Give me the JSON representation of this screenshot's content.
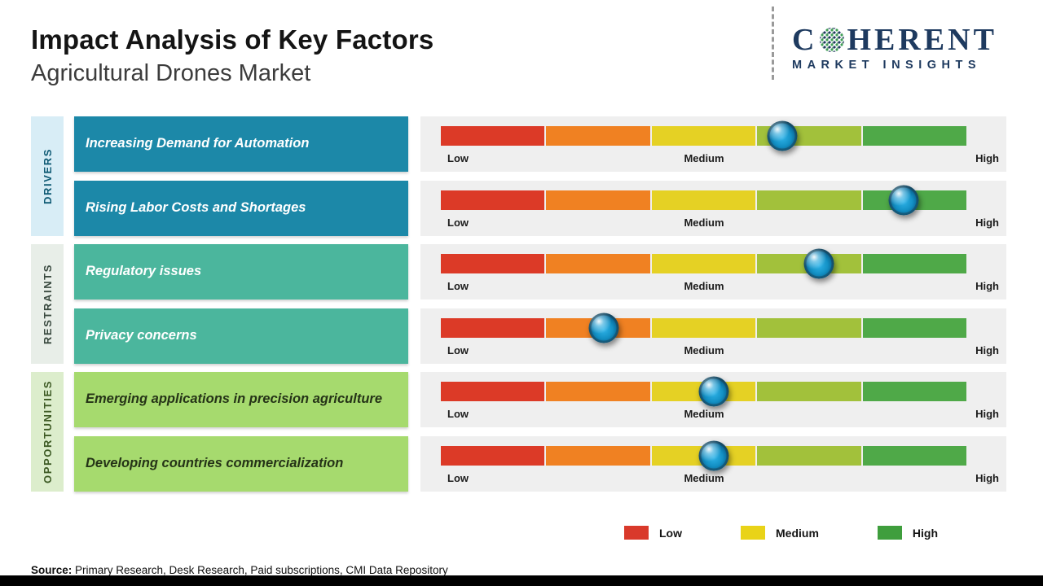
{
  "header": {
    "title": "Impact Analysis of Key Factors",
    "subtitle": "Agricultural Drones Market",
    "logo": {
      "part1": "C",
      "part2": "HERENT",
      "line2": "MARKET INSIGHTS"
    }
  },
  "chart_data": {
    "type": "heatmap",
    "description": "Impact scale chart: each factor marked on a Low-Medium-High gradient scale",
    "scale_labels": [
      "Low",
      "Medium",
      "High"
    ],
    "segment_colors": [
      "#dc3a27",
      "#f08122",
      "#e5d124",
      "#a2c13b",
      "#4fa948"
    ],
    "groups": [
      {
        "name": "DRIVERS",
        "factors": [
          {
            "label": "Increasing Demand for Automation",
            "impact_pct": 65
          },
          {
            "label": "Rising Labor Costs and Shortages",
            "impact_pct": 88
          }
        ]
      },
      {
        "name": "RESTRAINTS",
        "factors": [
          {
            "label": "Regulatory issues",
            "impact_pct": 72
          },
          {
            "label": "Privacy concerns",
            "impact_pct": 31
          }
        ]
      },
      {
        "name": "OPPORTUNITIES",
        "factors": [
          {
            "label": "Emerging applications in precision agriculture",
            "impact_pct": 52
          },
          {
            "label": "Developing countries commercialization",
            "impact_pct": 52
          }
        ]
      }
    ],
    "legend": [
      {
        "label": "Low",
        "color": "#d9392b"
      },
      {
        "label": "Medium",
        "color": "#e9d318"
      },
      {
        "label": "High",
        "color": "#3f9e3d"
      }
    ],
    "colors": {
      "drivers_box": "#1c88a8",
      "restraints_box": "#4bb69d",
      "opportunities_box": "#a6da6e",
      "drivers_category_bg": "#d8edf6",
      "restraints_category_bg": "#e8eee8",
      "opportunities_category_bg": "#dcedcc",
      "track_bg": "#efefef",
      "marker": "#1390c4"
    }
  },
  "source": {
    "label": "Source:",
    "text": "Primary Research, Desk Research, Paid subscriptions, CMI Data Repository"
  }
}
